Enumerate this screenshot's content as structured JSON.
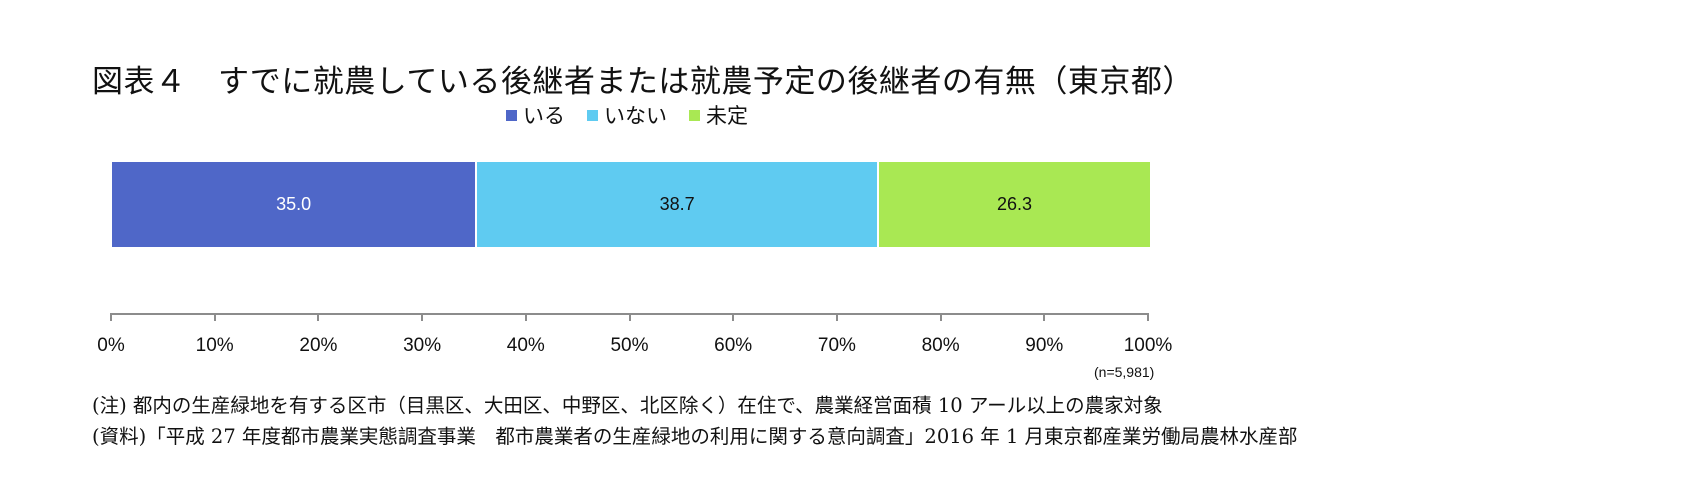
{
  "title": "図表４　すでに就農している後継者または就農予定の後継者の有無（東京都）",
  "legend": [
    {
      "label": "いる",
      "color": "#4F67C8"
    },
    {
      "label": "いない",
      "color": "#5FCBF1"
    },
    {
      "label": "未定",
      "color": "#A9E853"
    }
  ],
  "bar": {
    "segments": [
      {
        "label": "いる",
        "value": 35.0,
        "display": "35.0",
        "color": "#4F67C8",
        "text_color": "#ffffff"
      },
      {
        "label": "いない",
        "value": 38.7,
        "display": "38.7",
        "color": "#5FCBF1",
        "text_color": "#111111"
      },
      {
        "label": "未定",
        "value": 26.3,
        "display": "26.3",
        "color": "#A9E853",
        "text_color": "#111111"
      }
    ]
  },
  "axis": {
    "ticks": [
      "0%",
      "10%",
      "20%",
      "30%",
      "40%",
      "50%",
      "60%",
      "70%",
      "80%",
      "90%",
      "100%"
    ],
    "line_color": "#8C8C8C"
  },
  "sample_size": "(n=5,981)",
  "notes": {
    "note": "(注) 都内の生産緑地を有する区市（目黒区、大田区、中野区、北区除く）在住で、農業経営面積 10 アール以上の農家対象",
    "source": "(資料)「平成 27 年度都市農業実態調査事業　都市農業者の生産緑地の利用に関する意向調査」2016 年 1 月東京都産業労働局農林水産部"
  },
  "chart_data": {
    "type": "bar",
    "orientation": "horizontal",
    "stacked": true,
    "percent_stacked": true,
    "title": "図表４　すでに就農している後継者または就農予定の後継者の有無（東京都）",
    "categories": [
      "東京都"
    ],
    "series": [
      {
        "name": "いる",
        "values": [
          35.0
        ],
        "color": "#4F67C8"
      },
      {
        "name": "いない",
        "values": [
          38.7
        ],
        "color": "#5FCBF1"
      },
      {
        "name": "未定",
        "values": [
          26.3
        ],
        "color": "#A9E853"
      }
    ],
    "xlabel": "",
    "ylabel": "",
    "xlim": [
      0,
      100
    ],
    "x_ticks": [
      "0%",
      "10%",
      "20%",
      "30%",
      "40%",
      "50%",
      "60%",
      "70%",
      "80%",
      "90%",
      "100%"
    ],
    "legend_position": "top",
    "grid": false,
    "annotations": [
      "(n=5,981)"
    ]
  }
}
